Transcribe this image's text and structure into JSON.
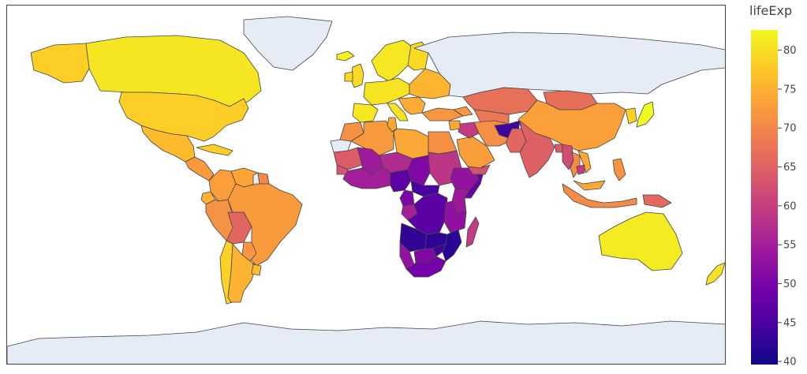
{
  "chart_data": {
    "type": "choropleth",
    "title": "",
    "projection": "equirectangular",
    "land_no_data_color": "#E5ECF6",
    "ocean_color": "#FFFFFF",
    "border_color": "#444444",
    "colorbar": {
      "title": "lifeExp",
      "range": [
        39.6,
        82.6
      ],
      "ticks": [
        40,
        45,
        50,
        55,
        60,
        65,
        70,
        75,
        80
      ],
      "tick_labels": [
        "40",
        "45",
        "50",
        "55",
        "60",
        "65",
        "70",
        "75",
        "80"
      ],
      "colorscale": [
        "#0d0887",
        "#46039f",
        "#7201a8",
        "#9c179e",
        "#bd3786",
        "#d8576b",
        "#ed7953",
        "#fb9f3a",
        "#fdca26",
        "#f0f921"
      ]
    },
    "regions": [
      {
        "name": "Canada",
        "value": 80.6
      },
      {
        "name": "United States",
        "value": 78.2
      },
      {
        "name": "Greenland",
        "value": null
      },
      {
        "name": "Alaska",
        "value": 78.2
      },
      {
        "name": "Mexico",
        "value": 76.2
      },
      {
        "name": "Central America",
        "value": 72.5
      },
      {
        "name": "Cuba",
        "value": 78.3
      },
      {
        "name": "Colombia",
        "value": 72.9
      },
      {
        "name": "Venezuela",
        "value": 73.7
      },
      {
        "name": "Guianas",
        "value": 70.0
      },
      {
        "name": "French Guiana",
        "value": null
      },
      {
        "name": "Ecuador",
        "value": 75.0
      },
      {
        "name": "Peru",
        "value": 71.4
      },
      {
        "name": "Bolivia",
        "value": 65.6
      },
      {
        "name": "Brazil",
        "value": 72.4
      },
      {
        "name": "Paraguay",
        "value": 71.8
      },
      {
        "name": "Chile",
        "value": 78.6
      },
      {
        "name": "Argentina",
        "value": 75.3
      },
      {
        "name": "Uruguay",
        "value": 76.4
      },
      {
        "name": "Iceland",
        "value": 81.8
      },
      {
        "name": "United Kingdom",
        "value": 79.4
      },
      {
        "name": "Ireland",
        "value": 78.9
      },
      {
        "name": "Scandinavia",
        "value": 80.9
      },
      {
        "name": "Finland",
        "value": 79.3
      },
      {
        "name": "Western Europe",
        "value": 80.5
      },
      {
        "name": "Iberia",
        "value": 80.9
      },
      {
        "name": "Italy",
        "value": 80.5
      },
      {
        "name": "Eastern Europe",
        "value": 75.5
      },
      {
        "name": "Balkans",
        "value": 74.5
      },
      {
        "name": "Russia",
        "value": null
      },
      {
        "name": "Turkey",
        "value": 71.8
      },
      {
        "name": "Caucasus",
        "value": 72.0
      },
      {
        "name": "Kazakhstan",
        "value": 67.0
      },
      {
        "name": "Central Asia",
        "value": 68.0
      },
      {
        "name": "Mongolia",
        "value": 66.8
      },
      {
        "name": "China",
        "value": 73.0
      },
      {
        "name": "Korea",
        "value": 78.6
      },
      {
        "name": "Japan",
        "value": 82.6
      },
      {
        "name": "Morocco",
        "value": 71.2
      },
      {
        "name": "Western Sahara",
        "value": null
      },
      {
        "name": "Algeria",
        "value": 72.3
      },
      {
        "name": "Tunisia",
        "value": 73.9
      },
      {
        "name": "Libya",
        "value": 74.0
      },
      {
        "name": "Egypt",
        "value": 71.3
      },
      {
        "name": "Mauritania",
        "value": 64.2
      },
      {
        "name": "Mali",
        "value": 54.5
      },
      {
        "name": "Niger",
        "value": 56.9
      },
      {
        "name": "Chad",
        "value": 50.7
      },
      {
        "name": "Sudan",
        "value": 58.6
      },
      {
        "name": "Ethiopia",
        "value": 52.9
      },
      {
        "name": "Somalia",
        "value": 48.2
      },
      {
        "name": "West Africa",
        "value": 55.0
      },
      {
        "name": "Senegal",
        "value": 63.1
      },
      {
        "name": "Nigeria",
        "value": 46.9
      },
      {
        "name": "Central African Republic",
        "value": 44.7
      },
      {
        "name": "Cameroon",
        "value": 50.4
      },
      {
        "name": "Congo",
        "value": 55.3
      },
      {
        "name": "DR Congo",
        "value": 46.5
      },
      {
        "name": "Kenya",
        "value": 54.1
      },
      {
        "name": "Tanzania",
        "value": 52.5
      },
      {
        "name": "Angola",
        "value": 42.7
      },
      {
        "name": "Zambia",
        "value": 42.4
      },
      {
        "name": "Mozambique",
        "value": 42.1
      },
      {
        "name": "Zimbabwe",
        "value": 43.5
      },
      {
        "name": "Namibia",
        "value": 52.9
      },
      {
        "name": "Botswana",
        "value": 50.7
      },
      {
        "name": "South Africa",
        "value": 49.3
      },
      {
        "name": "Madagascar",
        "value": 59.4
      },
      {
        "name": "Saudi Arabia",
        "value": 72.8
      },
      {
        "name": "Yemen",
        "value": 62.7
      },
      {
        "name": "Iraq",
        "value": 59.5
      },
      {
        "name": "Syria",
        "value": 74.1
      },
      {
        "name": "Iran",
        "value": 71.0
      },
      {
        "name": "Afghanistan",
        "value": 43.8
      },
      {
        "name": "Pakistan",
        "value": 65.5
      },
      {
        "name": "India",
        "value": 64.7
      },
      {
        "name": "Bangladesh",
        "value": 64.1
      },
      {
        "name": "Myanmar",
        "value": 62.1
      },
      {
        "name": "Thailand",
        "value": 70.6
      },
      {
        "name": "Vietnam",
        "value": 74.2
      },
      {
        "name": "Cambodia",
        "value": 59.7
      },
      {
        "name": "Malaysia",
        "value": 74.2
      },
      {
        "name": "Indonesia",
        "value": 70.7
      },
      {
        "name": "Philippines",
        "value": 71.7
      },
      {
        "name": "Papua New Guinea",
        "value": 66.0
      },
      {
        "name": "Australia",
        "value": 81.2
      },
      {
        "name": "New Zealand",
        "value": 80.2
      },
      {
        "name": "Antarctica",
        "value": null
      }
    ]
  }
}
